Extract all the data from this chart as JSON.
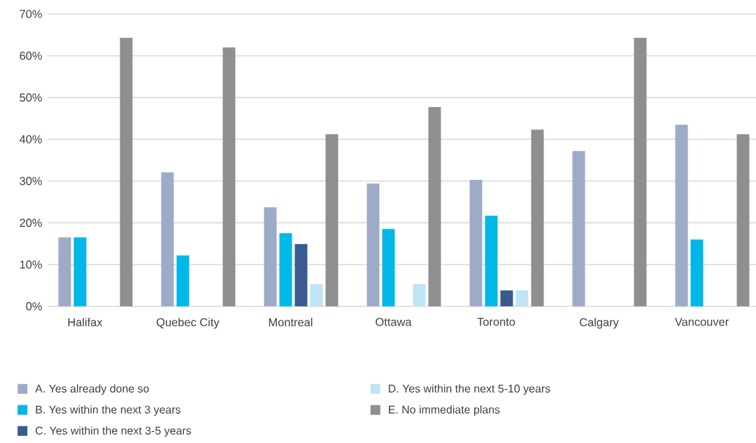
{
  "chart_data": {
    "type": "bar",
    "categories": [
      "Halifax",
      "Quebec City",
      "Montreal",
      "Ottawa",
      "Toronto",
      "Calgary",
      "Vancouver"
    ],
    "series": [
      {
        "name": "A. Yes already done so",
        "color": "#9dabc9",
        "values": [
          16.5,
          32.1,
          23.7,
          29.4,
          30.3,
          37.2,
          43.5
        ]
      },
      {
        "name": "B. Yes within the next 3 years",
        "color": "#00b8e8",
        "values": [
          16.5,
          12.2,
          17.5,
          18.5,
          21.7,
          null,
          16.0
        ]
      },
      {
        "name": "C. Yes within the next 3-5 years",
        "color": "#3a5a90",
        "values": [
          null,
          null,
          14.9,
          null,
          3.8,
          null,
          null
        ]
      },
      {
        "name": "D. Yes within the next 5-10 years",
        "color": "#bde5f4",
        "values": [
          null,
          null,
          5.3,
          5.3,
          3.8,
          null,
          null
        ]
      },
      {
        "name": "E. No immediate plans",
        "color": "#8f8f8f",
        "values": [
          64.3,
          62.0,
          41.2,
          47.7,
          42.3,
          64.3,
          41.2
        ]
      }
    ],
    "ylim": [
      0,
      70
    ],
    "yticks": [
      {
        "value": 0,
        "label": "0%"
      },
      {
        "value": 10,
        "label": "10%"
      },
      {
        "value": 20,
        "label": "20%"
      },
      {
        "value": 30,
        "label": "30%"
      },
      {
        "value": 40,
        "label": "40%"
      },
      {
        "value": 50,
        "label": "50%"
      },
      {
        "value": 60,
        "label": "60%"
      },
      {
        "value": 70,
        "label": "70%"
      }
    ],
    "grid": "y",
    "legend": "bottom"
  }
}
